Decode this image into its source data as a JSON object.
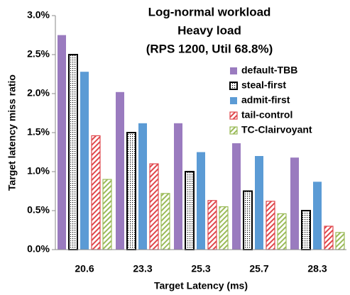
{
  "chart_data": {
    "type": "bar",
    "title": [
      "Log-normal workload",
      "Heavy load",
      "(RPS 1200, Util 68.8%)"
    ],
    "xlabel": "Target Latency (ms)",
    "ylabel": "Target latency miss ratio",
    "categories": [
      "20.6",
      "23.3",
      "25.3",
      "25.7",
      "28.3"
    ],
    "series": [
      {
        "name": "default-TBB",
        "color": "#9a7bbf",
        "fill": "solid",
        "values": [
          2.75,
          2.02,
          1.62,
          1.38,
          1.18
        ]
      },
      {
        "name": "steal-first",
        "color": "#000000",
        "fill": "dots",
        "values": [
          2.5,
          1.5,
          1.0,
          0.75,
          0.5
        ]
      },
      {
        "name": "admit-first",
        "color": "#5b9bd5",
        "fill": "solid",
        "values": [
          2.28,
          1.62,
          1.25,
          1.2,
          0.87
        ]
      },
      {
        "name": "tail-control",
        "color": "#e0474c",
        "fill": "hatch",
        "values": [
          1.46,
          1.1,
          0.63,
          0.62,
          0.3
        ]
      },
      {
        "name": "TC-Clairvoyant",
        "color": "#9bbb59",
        "fill": "hatch",
        "values": [
          0.9,
          0.72,
          0.55,
          0.46,
          0.22
        ]
      }
    ],
    "ylim": [
      0,
      3
    ],
    "yticks": [
      {
        "value": 0,
        "label": "0.0%"
      },
      {
        "value": 0.5,
        "label": "0.5%"
      },
      {
        "value": 1,
        "label": "1.0%"
      },
      {
        "value": 1.5,
        "label": "1.5%"
      },
      {
        "value": 2,
        "label": "2.0%"
      },
      {
        "value": 2.5,
        "label": "2.5%"
      },
      {
        "value": 3,
        "label": "3.0%"
      }
    ],
    "legend": "upper right",
    "grid": false
  }
}
